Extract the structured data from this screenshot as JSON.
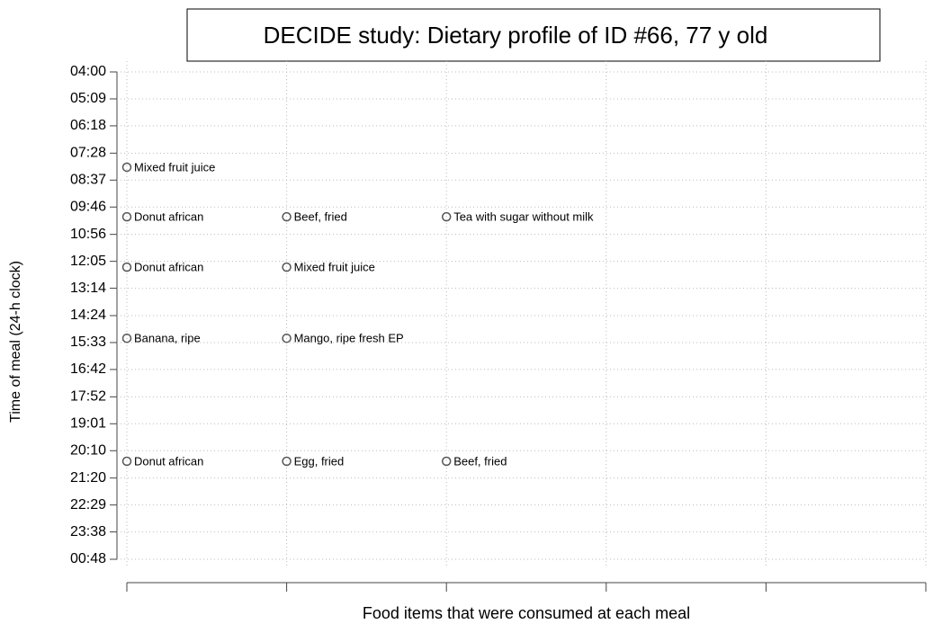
{
  "chart_data": {
    "type": "scatter",
    "title": "DECIDE study: Dietary profile of ID #66, 77 y  old",
    "x_label": "Food items that were consumed at each meal",
    "y_label": "Time of meal (24-h clock)",
    "x": [
      1,
      1,
      2,
      3,
      1,
      2,
      1,
      2,
      1,
      2,
      3
    ],
    "values": [
      484,
      611,
      611,
      611,
      740,
      740,
      922,
      922,
      1237,
      1237,
      1237
    ],
    "labels": [
      "Mixed fruit juice",
      "Donut  african",
      "Beef, fried",
      "Tea with sugar without milk",
      "Donut  african",
      "Mixed fruit juice",
      "Banana, ripe",
      "Mango, ripe fresh EP",
      "Donut  african",
      "Egg, fried",
      "Beef, fried"
    ],
    "color": "#555555",
    "xlim": [
      1,
      6
    ],
    "xticks": [
      1,
      2,
      3,
      4,
      5,
      6
    ],
    "ylim": [
      240,
      1488
    ],
    "y_inverted": true,
    "yticks": [
      {
        "value": 240,
        "label": "04:00"
      },
      {
        "value": 309,
        "label": "05:09"
      },
      {
        "value": 378,
        "label": "06:18"
      },
      {
        "value": 448,
        "label": "07:28"
      },
      {
        "value": 517,
        "label": "08:37"
      },
      {
        "value": 586,
        "label": "09:46"
      },
      {
        "value": 656,
        "label": "10:56"
      },
      {
        "value": 725,
        "label": "12:05"
      },
      {
        "value": 794,
        "label": "13:14"
      },
      {
        "value": 864,
        "label": "14:24"
      },
      {
        "value": 933,
        "label": "15:33"
      },
      {
        "value": 1002,
        "label": "16:42"
      },
      {
        "value": 1072,
        "label": "17:52"
      },
      {
        "value": 1141,
        "label": "19:01"
      },
      {
        "value": 1210,
        "label": "20:10"
      },
      {
        "value": 1280,
        "label": "21:20"
      },
      {
        "value": 1349,
        "label": "22:29"
      },
      {
        "value": 1418,
        "label": "23:38"
      },
      {
        "value": 1488,
        "label": "00:48"
      }
    ],
    "grid": true
  }
}
